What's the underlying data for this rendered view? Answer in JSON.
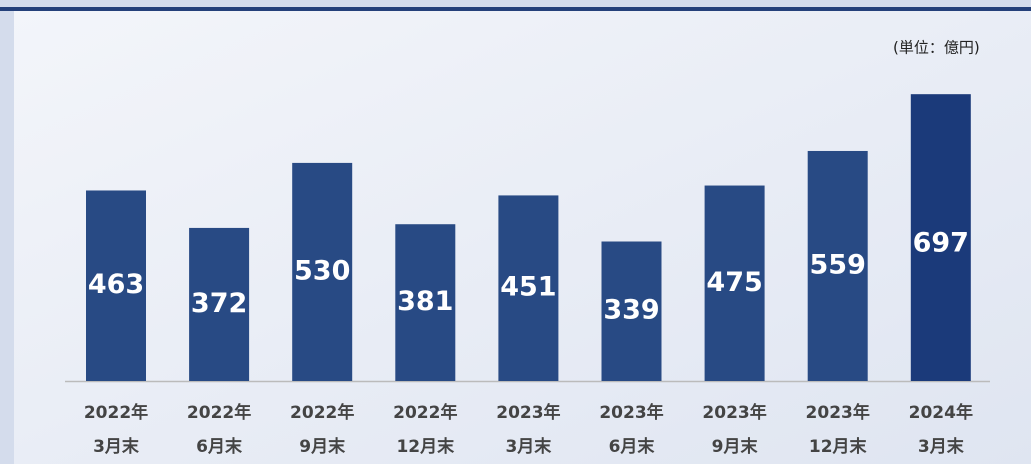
{
  "chart_data": {
    "type": "bar",
    "unit_label": "(単位：億円)",
    "categories": [
      [
        "2022年",
        "3月末"
      ],
      [
        "2022年",
        "6月末"
      ],
      [
        "2022年",
        "9月末"
      ],
      [
        "2022年",
        "12月末"
      ],
      [
        "2023年",
        "3月末"
      ],
      [
        "2023年",
        "6月末"
      ],
      [
        "2023年",
        "9月末"
      ],
      [
        "2023年",
        "12月末"
      ],
      [
        "2024年",
        "3月末"
      ]
    ],
    "values": [
      463,
      372,
      530,
      381,
      451,
      339,
      475,
      559,
      697
    ],
    "colors": [
      "#284a84",
      "#284a84",
      "#284a84",
      "#284a84",
      "#284a84",
      "#284a84",
      "#284a84",
      "#284a84",
      "#1b3a7a"
    ]
  }
}
